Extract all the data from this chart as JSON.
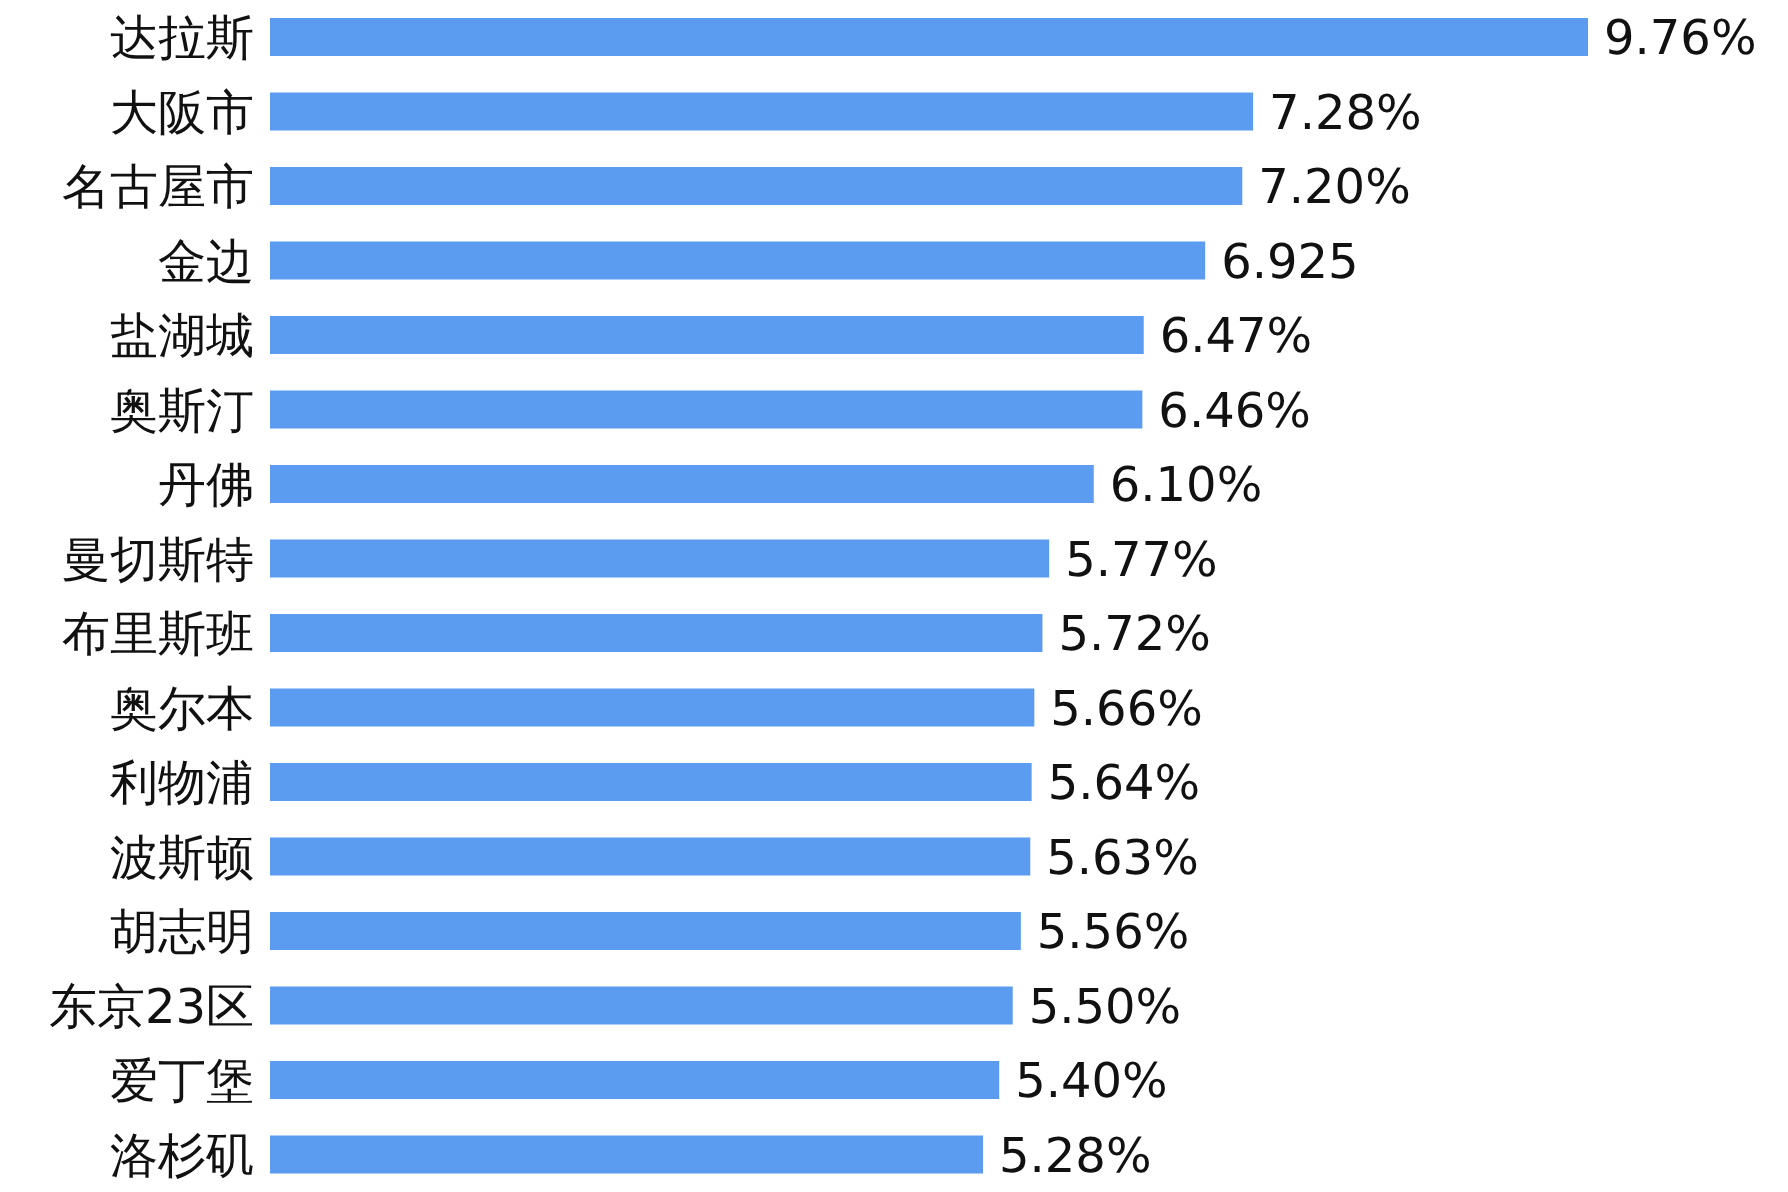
{
  "chart_data": {
    "type": "bar",
    "orientation": "horizontal",
    "categories": [
      "达拉斯",
      "大阪市",
      "名古屋市",
      "金边",
      "盐湖城",
      "奥斯汀",
      "丹佛",
      "曼切斯特",
      "布里斯班",
      "奥尔本",
      "利物浦",
      "波斯顿",
      "胡志明",
      "东京23区",
      "爱丁堡",
      "洛杉矶"
    ],
    "values": [
      9.76,
      7.28,
      7.2,
      6.925,
      6.47,
      6.46,
      6.1,
      5.77,
      5.72,
      5.66,
      5.64,
      5.63,
      5.56,
      5.5,
      5.4,
      5.28
    ],
    "value_labels": [
      "9.76%",
      "7.28%",
      "7.20%",
      "6.925",
      "6.47%",
      "6.46%",
      "6.10%",
      "5.77%",
      "5.72%",
      "5.66%",
      "5.64%",
      "5.63%",
      "5.56%",
      "5.50%",
      "5.40%",
      "5.28%"
    ],
    "color": "#5b9bf0"
  }
}
